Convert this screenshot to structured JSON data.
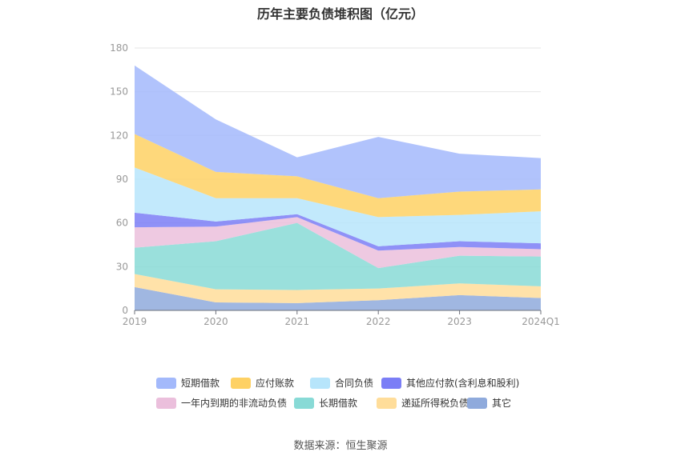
{
  "chart_data": {
    "type": "area",
    "stacked": true,
    "title": "历年主要负债堆积图（亿元）",
    "categories": [
      "2019",
      "2020",
      "2021",
      "2022",
      "2023",
      "2024Q1"
    ],
    "ylim": [
      0,
      180
    ],
    "yticks": [
      0,
      30,
      60,
      90,
      120,
      150,
      180
    ],
    "grid": true,
    "legend_position": "bottom",
    "series": [
      {
        "name": "其它",
        "color": "#8faadc",
        "values": [
          16,
          5.5,
          5,
          7,
          10.5,
          8.5
        ]
      },
      {
        "name": "递延所得税负债",
        "color": "#ffdd9a",
        "values": [
          9,
          9,
          9,
          8,
          8,
          8
        ]
      },
      {
        "name": "长期借款",
        "color": "#88dad6",
        "values": [
          18,
          33,
          46,
          14,
          19,
          20.5
        ]
      },
      {
        "name": "一年内到期的非流动负债",
        "color": "#ebbfdc",
        "values": [
          14,
          10,
          4,
          12,
          6,
          5
        ]
      },
      {
        "name": "其他应付款(含利息和股利)",
        "color": "#7b7ef6",
        "values": [
          10,
          3.5,
          2,
          3,
          4,
          4
        ]
      },
      {
        "name": "合同负债",
        "color": "#b7e5fb",
        "values": [
          31,
          16,
          11,
          20,
          18,
          22
        ]
      },
      {
        "name": "应付账款",
        "color": "#fed164",
        "values": [
          23,
          18,
          15,
          13,
          16,
          15
        ]
      },
      {
        "name": "短期借款",
        "color": "#a3b9fb",
        "values": [
          47,
          36,
          13,
          42,
          26,
          21.5
        ]
      }
    ],
    "legend_order": [
      "短期借款",
      "应付账款",
      "合同负债",
      "其他应付款(含利息和股利)",
      "一年内到期的非流动负债",
      "长期借款",
      "递延所得税负债",
      "其它"
    ]
  },
  "source": "数据来源：恒生聚源"
}
